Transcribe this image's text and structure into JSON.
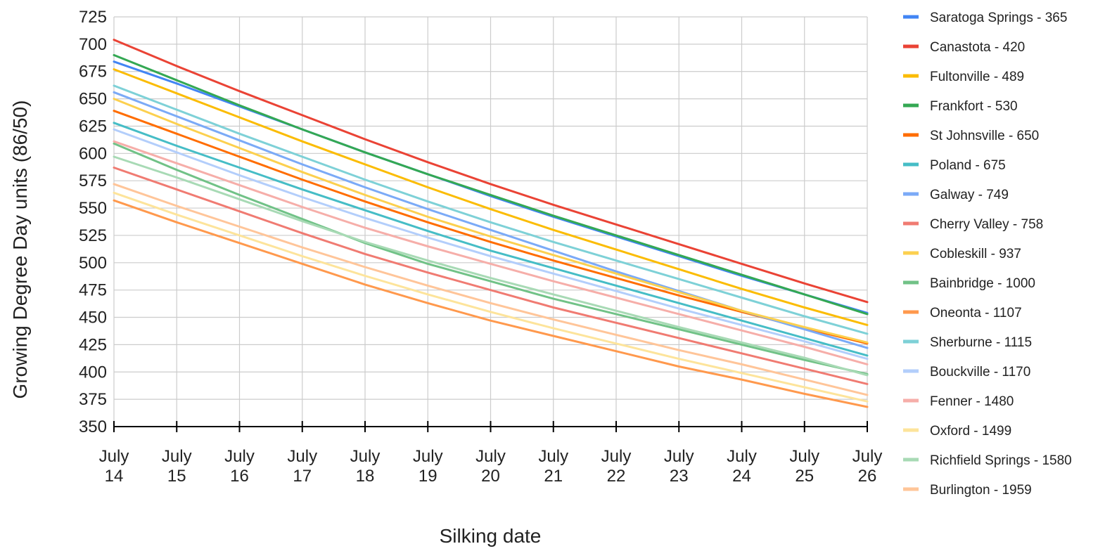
{
  "chart_data": {
    "type": "line",
    "title": "",
    "xlabel": "Silking date",
    "ylabel": "Growing Degree Day units (86/50)",
    "ylim": [
      350,
      725
    ],
    "yticks": [
      350,
      375,
      400,
      425,
      450,
      475,
      500,
      525,
      550,
      575,
      600,
      625,
      650,
      675,
      700,
      725
    ],
    "categories": [
      [
        "July",
        "14"
      ],
      [
        "July",
        "15"
      ],
      [
        "July",
        "16"
      ],
      [
        "July",
        "17"
      ],
      [
        "July",
        "18"
      ],
      [
        "July",
        "19"
      ],
      [
        "July",
        "20"
      ],
      [
        "July",
        "21"
      ],
      [
        "July",
        "22"
      ],
      [
        "July",
        "23"
      ],
      [
        "July",
        "24"
      ],
      [
        "July",
        "25"
      ],
      [
        "July",
        "26"
      ]
    ],
    "grid": true,
    "legend_position": "right",
    "series": [
      {
        "name": "Saratoga Springs - 365",
        "color": "#4285F4",
        "values": [
          684,
          664,
          643,
          622,
          601,
          581,
          561,
          542,
          524,
          506,
          488,
          471,
          454
        ]
      },
      {
        "name": "Canastota - 420",
        "color": "#EA4335",
        "values": [
          704,
          680,
          657,
          635,
          613,
          592,
          572,
          553,
          535,
          517,
          499,
          481,
          464
        ]
      },
      {
        "name": "Fultonville - 489",
        "color": "#FBBC04",
        "values": [
          677,
          655,
          633,
          611,
          590,
          569,
          549,
          530,
          512,
          494,
          476,
          459,
          443
        ]
      },
      {
        "name": "Frankfort - 530",
        "color": "#34A853",
        "values": [
          690,
          667,
          644,
          622,
          601,
          581,
          562,
          543,
          525,
          507,
          489,
          471,
          453
        ]
      },
      {
        "name": "St Johnsville - 650",
        "color": "#FF6D01",
        "values": [
          639,
          618,
          597,
          576,
          556,
          537,
          519,
          502,
          486,
          470,
          455,
          440,
          426
        ]
      },
      {
        "name": "Poland - 675",
        "color": "#46BDC6",
        "values": [
          628,
          607,
          587,
          567,
          548,
          529,
          511,
          495,
          479,
          463,
          447,
          431,
          415
        ]
      },
      {
        "name": "Galway - 749",
        "color": "#7BAAF7",
        "values": [
          656,
          634,
          612,
          590,
          569,
          549,
          530,
          511,
          492,
          474,
          456,
          439,
          422
        ]
      },
      {
        "name": "Cherry Valley - 758",
        "color": "#F07B72",
        "values": [
          587,
          567,
          547,
          527,
          508,
          491,
          475,
          459,
          445,
          431,
          417,
          403,
          389
        ]
      },
      {
        "name": "Cobleskill - 937",
        "color": "#FCD04F",
        "values": [
          650,
          627,
          605,
          583,
          562,
          542,
          524,
          507,
          490,
          473,
          456,
          441,
          427
        ]
      },
      {
        "name": "Bainbridge - 1000",
        "color": "#71C287",
        "values": [
          609,
          585,
          562,
          540,
          518,
          499,
          483,
          467,
          453,
          439,
          425,
          411,
          398
        ]
      },
      {
        "name": "Oneonta - 1107",
        "color": "#FF994D",
        "values": [
          557,
          537,
          518,
          499,
          480,
          463,
          447,
          433,
          419,
          405,
          393,
          380,
          368
        ]
      },
      {
        "name": "Sherburne - 1115",
        "color": "#7ED1D7",
        "values": [
          662,
          640,
          618,
          597,
          576,
          556,
          537,
          519,
          502,
          485,
          468,
          451,
          435
        ]
      },
      {
        "name": "Bouckville - 1170",
        "color": "#B3CEFB",
        "values": [
          622,
          601,
          580,
          560,
          541,
          523,
          506,
          490,
          474,
          458,
          443,
          428,
          412
        ]
      },
      {
        "name": "Fenner - 1480",
        "color": "#F6AEA9",
        "values": [
          611,
          591,
          571,
          551,
          532,
          515,
          499,
          483,
          468,
          453,
          438,
          423,
          407
        ]
      },
      {
        "name": "Oxford - 1499",
        "color": "#FDE49B",
        "values": [
          564,
          544,
          525,
          506,
          488,
          471,
          455,
          440,
          426,
          412,
          399,
          386,
          373
        ]
      },
      {
        "name": "Richfield Springs - 1580",
        "color": "#A8DAB5",
        "values": [
          597,
          578,
          558,
          538,
          519,
          502,
          486,
          471,
          456,
          441,
          427,
          413,
          397
        ]
      },
      {
        "name": "Burlington - 1959",
        "color": "#FFC599",
        "values": [
          572,
          552,
          533,
          514,
          496,
          479,
          463,
          448,
          434,
          420,
          407,
          393,
          379
        ]
      }
    ]
  }
}
